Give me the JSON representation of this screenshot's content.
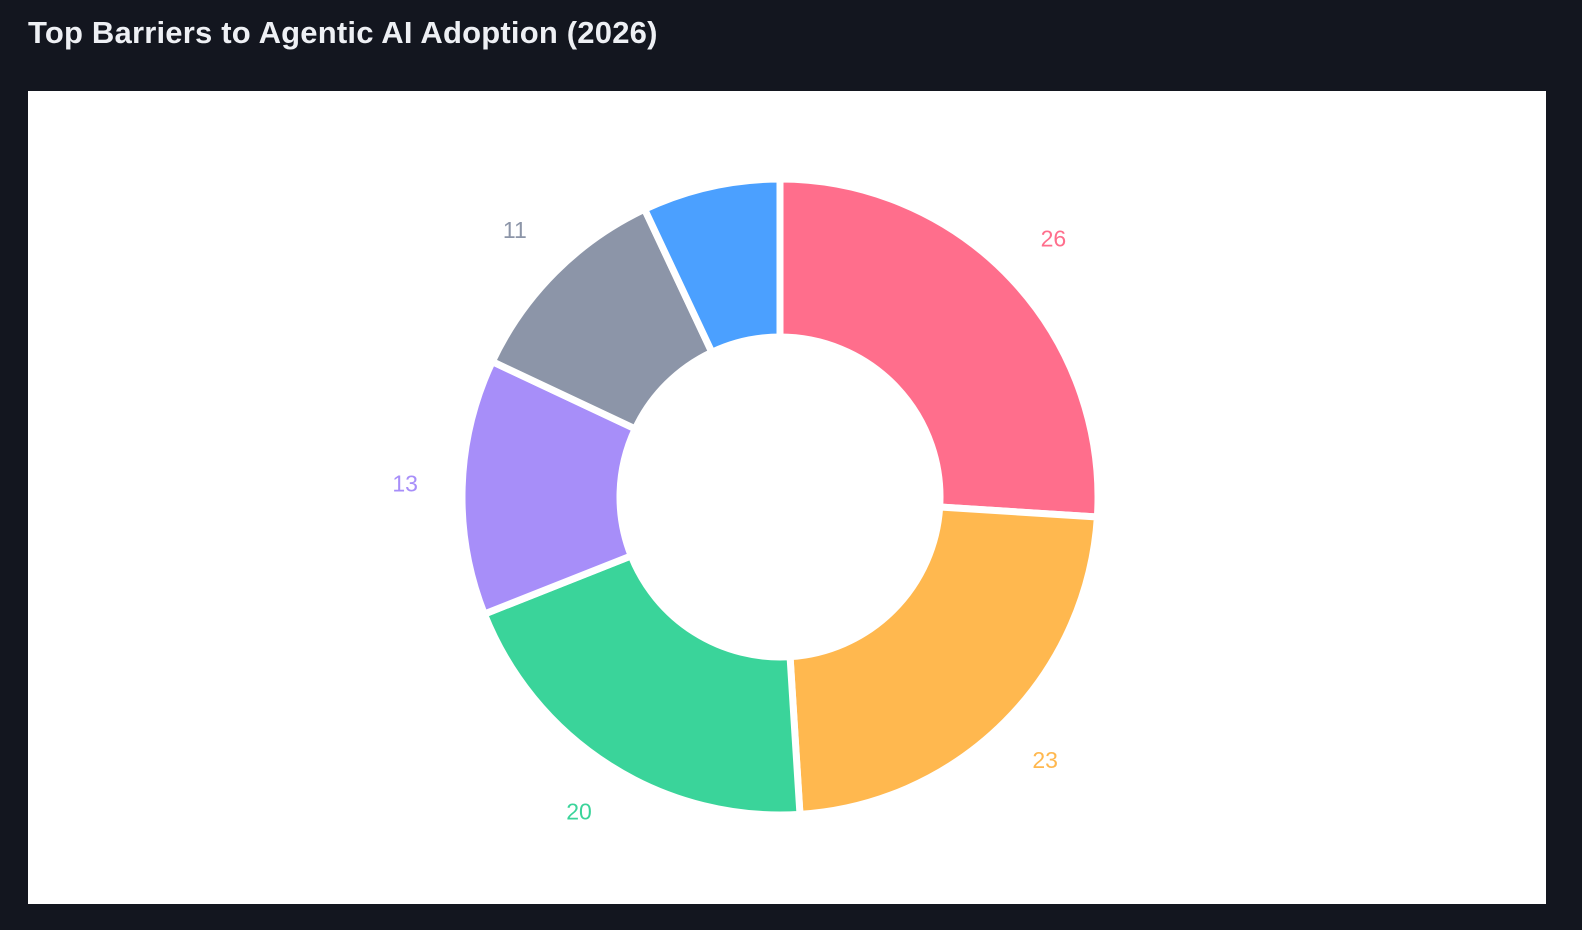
{
  "page": {
    "title": "Top Barriers to Agentic AI Adoption (2026)"
  },
  "colors": {
    "page_background": "#13161f",
    "panel_background": "#ffffff",
    "slice_gap": "#ffffff"
  },
  "chart_data": {
    "type": "pie",
    "variant": "donut",
    "title": "Top Barriers to Agentic AI Adoption (2026)",
    "start_angle": "12 o'clock, clockwise",
    "legend": "none",
    "slices": [
      {
        "value": 26,
        "label": "26",
        "show_label": true,
        "color": "#ff6e8c"
      },
      {
        "value": 23,
        "label": "23",
        "show_label": true,
        "color": "#ffb84f"
      },
      {
        "value": 20,
        "label": "20",
        "show_label": true,
        "color": "#3ad49a"
      },
      {
        "value": 13,
        "label": "13",
        "show_label": true,
        "color": "#a78ef9"
      },
      {
        "value": 11,
        "label": "11",
        "show_label": true,
        "color": "#8c95a8"
      },
      {
        "value": 7,
        "label": "",
        "show_label": false,
        "color": "#4ba0ff"
      }
    ]
  }
}
